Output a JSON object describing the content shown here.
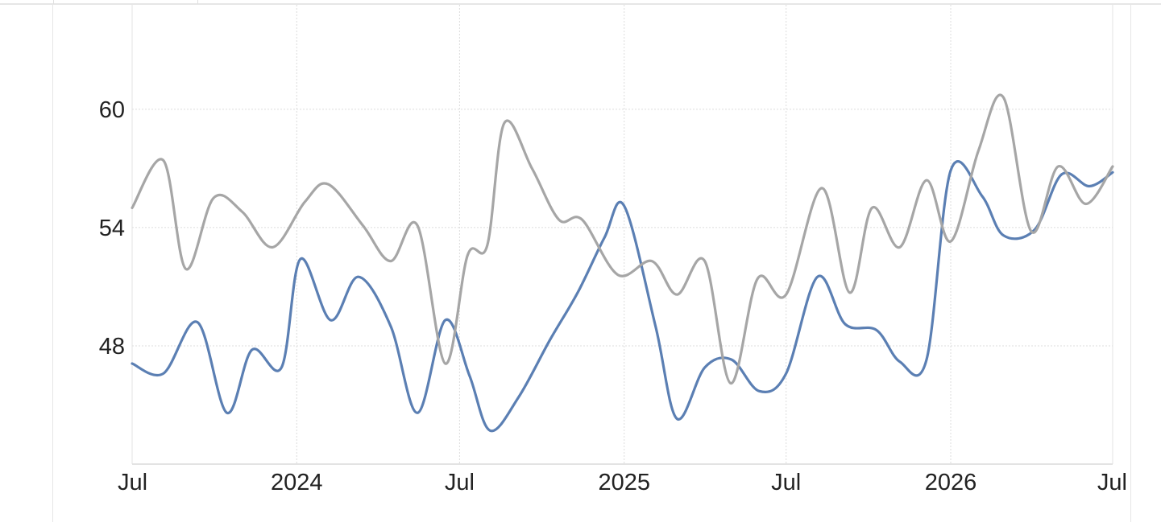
{
  "chart_data": {
    "type": "line",
    "x_ticks": [
      {
        "label": "Jul",
        "date": "2023-07-01"
      },
      {
        "label": "2024",
        "date": "2024-01-01"
      },
      {
        "label": "Jul",
        "date": "2024-07-01"
      },
      {
        "label": "2025",
        "date": "2025-01-01"
      },
      {
        "label": "Jul",
        "date": "2025-07-01"
      },
      {
        "label": "2026",
        "date": "2026-01-01"
      },
      {
        "label": "Jul",
        "date": "2026-07-01"
      }
    ],
    "y_ticks": [
      48,
      54,
      60
    ],
    "ylim": [
      42,
      65.3
    ],
    "xlim": [
      "2023-07-01",
      "2026-07-01"
    ],
    "grid": true,
    "series": [
      {
        "color": "#5b7fb3",
        "points": [
          [
            "2023-07-01",
            47.1
          ],
          [
            "2023-08-05",
            46.6
          ],
          [
            "2023-09-12",
            49.2
          ],
          [
            "2023-10-15",
            44.6
          ],
          [
            "2023-11-12",
            47.8
          ],
          [
            "2023-12-15",
            46.9
          ],
          [
            "2024-01-05",
            52.4
          ],
          [
            "2024-02-08",
            49.3
          ],
          [
            "2024-03-10",
            51.5
          ],
          [
            "2024-04-15",
            49.0
          ],
          [
            "2024-05-15",
            44.6
          ],
          [
            "2024-06-15",
            49.3
          ],
          [
            "2024-07-12",
            46.5
          ],
          [
            "2024-08-04",
            43.7
          ],
          [
            "2024-09-05",
            45.4
          ],
          [
            "2024-10-10",
            48.3
          ],
          [
            "2024-11-10",
            50.7
          ],
          [
            "2024-12-10",
            53.5
          ],
          [
            "2025-01-01",
            55.1
          ],
          [
            "2025-02-05",
            49.0
          ],
          [
            "2025-03-01",
            44.3
          ],
          [
            "2025-04-01",
            46.9
          ],
          [
            "2025-05-01",
            47.3
          ],
          [
            "2025-06-01",
            45.7
          ],
          [
            "2025-07-01",
            46.6
          ],
          [
            "2025-08-05",
            51.5
          ],
          [
            "2025-09-05",
            49.1
          ],
          [
            "2025-10-10",
            48.8
          ],
          [
            "2025-11-05",
            47.2
          ],
          [
            "2025-12-05",
            47.3
          ],
          [
            "2026-01-01",
            56.9
          ],
          [
            "2026-02-05",
            55.6
          ],
          [
            "2026-03-01",
            53.6
          ],
          [
            "2026-04-05",
            53.9
          ],
          [
            "2026-05-05",
            56.7
          ],
          [
            "2026-06-05",
            56.1
          ],
          [
            "2026-07-01",
            56.8
          ]
        ]
      },
      {
        "color": "#a6a6a6",
        "points": [
          [
            "2023-07-01",
            55.0
          ],
          [
            "2023-08-05",
            57.4
          ],
          [
            "2023-08-30",
            51.9
          ],
          [
            "2023-09-30",
            55.5
          ],
          [
            "2023-11-01",
            54.8
          ],
          [
            "2023-12-05",
            53.0
          ],
          [
            "2024-01-10",
            55.3
          ],
          [
            "2024-02-05",
            56.2
          ],
          [
            "2024-03-15",
            54.1
          ],
          [
            "2024-04-15",
            52.3
          ],
          [
            "2024-05-15",
            54.1
          ],
          [
            "2024-06-15",
            47.1
          ],
          [
            "2024-07-10",
            52.6
          ],
          [
            "2024-08-01",
            53.1
          ],
          [
            "2024-08-20",
            59.3
          ],
          [
            "2024-09-20",
            57.0
          ],
          [
            "2024-10-20",
            54.4
          ],
          [
            "2024-11-15",
            54.4
          ],
          [
            "2024-12-25",
            51.6
          ],
          [
            "2025-02-01",
            52.3
          ],
          [
            "2025-03-01",
            50.6
          ],
          [
            "2025-04-01",
            52.3
          ],
          [
            "2025-04-30",
            46.1
          ],
          [
            "2025-05-30",
            51.4
          ],
          [
            "2025-07-01",
            50.6
          ],
          [
            "2025-08-10",
            56.0
          ],
          [
            "2025-09-10",
            50.7
          ],
          [
            "2025-10-05",
            55.0
          ],
          [
            "2025-11-05",
            53.0
          ],
          [
            "2025-12-05",
            56.4
          ],
          [
            "2026-01-01",
            53.3
          ],
          [
            "2026-02-01",
            57.9
          ],
          [
            "2026-03-01",
            60.6
          ],
          [
            "2026-04-01",
            53.8
          ],
          [
            "2026-05-01",
            57.1
          ],
          [
            "2026-06-01",
            55.2
          ],
          [
            "2026-07-01",
            57.1
          ]
        ]
      }
    ]
  }
}
